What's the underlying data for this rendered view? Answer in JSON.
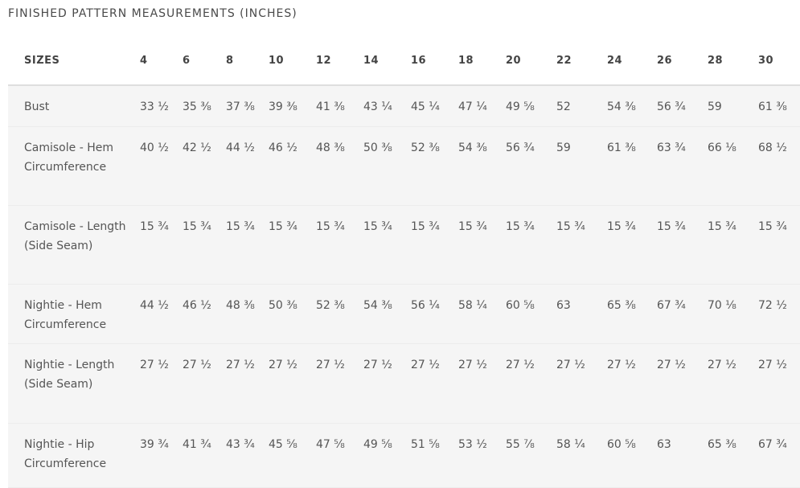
{
  "title": "FINISHED PATTERN MEASUREMENTS (INCHES)",
  "header": [
    "SIZES",
    "4",
    "6",
    "8",
    "10",
    "12",
    "14",
    "16",
    "18",
    "20",
    "22",
    "24",
    "26",
    "28",
    "30"
  ],
  "rows": [
    {
      "label": "Bust",
      "values": [
        "33 ½",
        "35 ⅜",
        "37 ⅜",
        "39 ⅜",
        "41 ⅜",
        "43 ¼",
        "45 ¼",
        "47 ¼",
        "49 ⅝",
        "52",
        "54 ⅜",
        "56 ¾",
        "59",
        "61 ⅜"
      ]
    },
    {
      "label": "Camisole - Hem Circumference",
      "values": [
        "40 ½",
        "42 ½",
        "44 ½",
        "46 ½",
        "48 ⅜",
        "50 ⅜",
        "52 ⅜",
        "54 ⅜",
        "56 ¾",
        "59",
        "61 ⅜",
        "63 ¾",
        "66 ⅛",
        "68 ½"
      ]
    },
    {
      "label": "Camisole - Length (Side Seam)",
      "values": [
        "15 ¾",
        "15 ¾",
        "15 ¾",
        "15 ¾",
        "15 ¾",
        "15 ¾",
        "15 ¾",
        "15 ¾",
        "15 ¾",
        "15 ¾",
        "15 ¾",
        "15 ¾",
        "15 ¾",
        "15 ¾"
      ]
    },
    {
      "label": "Nightie - Hem Circumference",
      "values": [
        "44 ½",
        "46 ½",
        "48 ⅜",
        "50 ⅜",
        "52 ⅜",
        "54 ⅜",
        "56 ¼",
        "58 ¼",
        "60 ⅝",
        "63",
        "65 ⅜",
        "67 ¾",
        "70 ⅛",
        "72 ½"
      ]
    },
    {
      "label": "Nightie - Length (Side Seam)",
      "values": [
        "27 ½",
        "27 ½",
        "27 ½",
        "27 ½",
        "27 ½",
        "27 ½",
        "27 ½",
        "27 ½",
        "27 ½",
        "27 ½",
        "27 ½",
        "27 ½",
        "27 ½",
        "27 ½"
      ]
    },
    {
      "label": "Nightie - Hip Circumference",
      "values": [
        "39 ¾",
        "41 ¾",
        "43 ¾",
        "45 ⅝",
        "47 ⅝",
        "49 ⅝",
        "51 ⅝",
        "53 ½",
        "55 ⅞",
        "58 ¼",
        "60 ⅝",
        "63",
        "65 ⅜",
        "67 ¾"
      ]
    }
  ]
}
